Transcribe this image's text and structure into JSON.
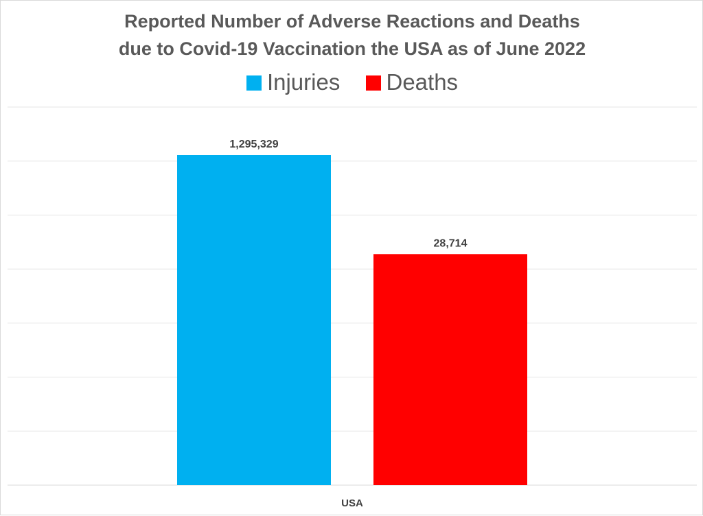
{
  "chart_data": {
    "type": "bar",
    "title_line1": "Reported Number of Adverse Reactions and Deaths",
    "title_line2": "due to Covid-19 Vaccination the USA as of  June 2022",
    "categories": [
      "USA"
    ],
    "series": [
      {
        "name": "Injuries",
        "values": [
          1295329
        ],
        "label": "1,295,329",
        "color": "#00b0f0"
      },
      {
        "name": "Deaths",
        "values": [
          28714
        ],
        "label": "28,714",
        "color": "#ff0000"
      }
    ],
    "bar_heights_relative": [
      1.0,
      0.7
    ],
    "gridlines": 7,
    "legend_position": "top",
    "grid": true
  }
}
